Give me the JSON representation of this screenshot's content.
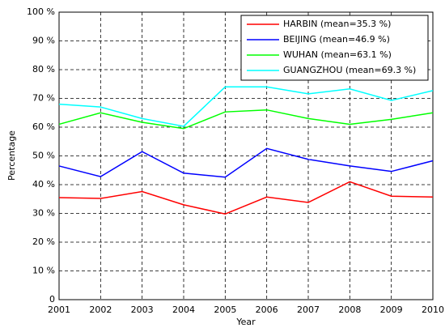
{
  "chart_data": {
    "type": "line",
    "xlabel": "Year",
    "ylabel": "Percentage",
    "x": [
      2001,
      2002,
      2003,
      2004,
      2005,
      2006,
      2007,
      2008,
      2009,
      2010
    ],
    "xlim": [
      2001,
      2010
    ],
    "xticks": [
      2001,
      2002,
      2003,
      2004,
      2005,
      2006,
      2007,
      2008,
      2009,
      2010
    ],
    "ylim": [
      0,
      100
    ],
    "yticks": [
      0,
      {
        "value": 10,
        "label": "10 %"
      },
      {
        "value": 20,
        "label": "20 %"
      },
      {
        "value": 30,
        "label": "30 %"
      },
      {
        "value": 40,
        "label": "40 %"
      },
      {
        "value": 50,
        "label": "50 %"
      },
      {
        "value": 60,
        "label": "60 %"
      },
      {
        "value": 70,
        "label": "70 %"
      },
      {
        "value": 80,
        "label": "80 %"
      },
      {
        "value": 90,
        "label": "90 %"
      },
      {
        "value": 100,
        "label": "100 %"
      }
    ],
    "grid": true,
    "legend": "upper right",
    "series": [
      {
        "name": "HARBIN (mean=35.3 %)",
        "color": "#ff0000",
        "values": [
          35.5,
          35.2,
          37.6,
          33,
          29.8,
          35.7,
          33.8,
          41,
          36,
          35.7
        ]
      },
      {
        "name": "BEIJING (mean=46.9 %)",
        "color": "#0000ff",
        "values": [
          46.5,
          42.8,
          51.5,
          44,
          42.6,
          52.6,
          48.8,
          46.5,
          44.6,
          48.3
        ]
      },
      {
        "name": "WUHAN (mean=63.1 %)",
        "color": "#00ff00",
        "values": [
          61,
          65,
          61.7,
          59.5,
          65.3,
          66,
          63,
          61,
          62.7,
          65
        ]
      },
      {
        "name": "GUANGZHOU (mean=69.3 %)",
        "color": "#00ffff",
        "values": [
          68,
          67,
          63,
          60.3,
          74,
          74,
          71.6,
          73.3,
          69.3,
          72.7
        ]
      }
    ]
  }
}
